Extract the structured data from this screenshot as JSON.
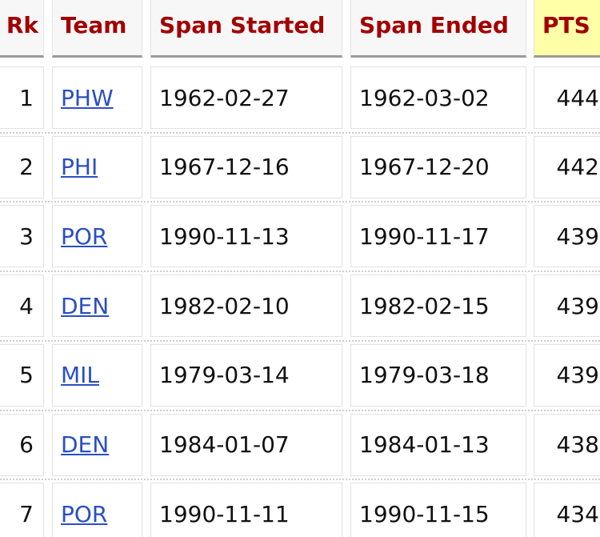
{
  "table": {
    "headers": [
      "Rk",
      "Team",
      "Span Started",
      "Span Ended",
      "PTS"
    ],
    "rows": [
      [
        "1",
        "PHW",
        "1962-02-27",
        "1962-03-02",
        "444"
      ],
      [
        "2",
        "PHI",
        "1967-12-16",
        "1967-12-20",
        "442"
      ],
      [
        "3",
        "POR",
        "1990-11-13",
        "1990-11-17",
        "439"
      ],
      [
        "4",
        "DEN",
        "1982-02-10",
        "1982-02-15",
        "439"
      ],
      [
        "5",
        "MIL",
        "1979-03-14",
        "1979-03-18",
        "439"
      ],
      [
        "6",
        "DEN",
        "1984-01-07",
        "1984-01-13",
        "438"
      ],
      [
        "7",
        "POR",
        "1990-11-11",
        "1990-11-15",
        "434"
      ]
    ]
  }
}
